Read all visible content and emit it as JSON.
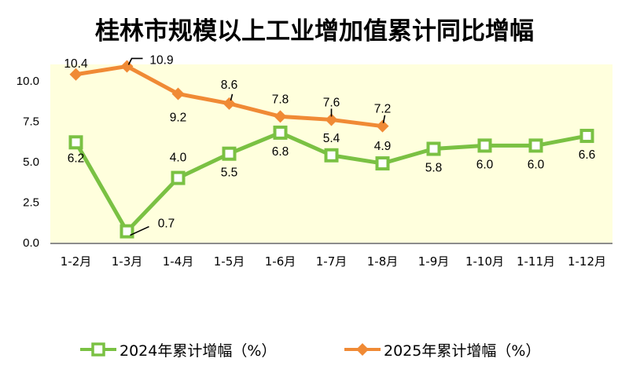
{
  "chart_data": {
    "type": "line",
    "title": "桂林市规模以上工业增加值累计同比增幅",
    "xlabel": "",
    "ylabel": "",
    "categories": [
      "1-2月",
      "1-3月",
      "1-4月",
      "1-5月",
      "1-6月",
      "1-7月",
      "1-8月",
      "1-9月",
      "1-10月",
      "1-11月",
      "1-12月"
    ],
    "ylim": [
      0,
      11
    ],
    "yticks": [
      "0.0",
      "2.5",
      "5.0",
      "7.5",
      "10.0"
    ],
    "ytick_values": [
      0,
      2.5,
      5,
      7.5,
      10
    ],
    "grid": false,
    "plot_background": "#FFFFDD",
    "legend_position": "bottom",
    "series": [
      {
        "name": "2024年累计增幅（%）",
        "color": "#7AC143",
        "marker": "square-hollow",
        "values": [
          6.2,
          0.7,
          4.0,
          5.5,
          6.8,
          5.4,
          4.9,
          5.8,
          6.0,
          6.0,
          6.6
        ],
        "labels": [
          "6.2",
          "0.7",
          "4.0",
          "5.5",
          "6.8",
          "5.4",
          "4.9",
          "5.8",
          "6.0",
          "6.0",
          "6.6"
        ]
      },
      {
        "name": "2025年累计增幅（%）",
        "color": "#F08A35",
        "marker": "diamond",
        "values": [
          10.4,
          10.9,
          9.2,
          8.6,
          7.8,
          7.6,
          7.2,
          null,
          null,
          null,
          null
        ],
        "labels": [
          "10.4",
          "10.9",
          "9.2",
          "8.6",
          "7.8",
          "7.6",
          "7.2"
        ]
      }
    ]
  }
}
